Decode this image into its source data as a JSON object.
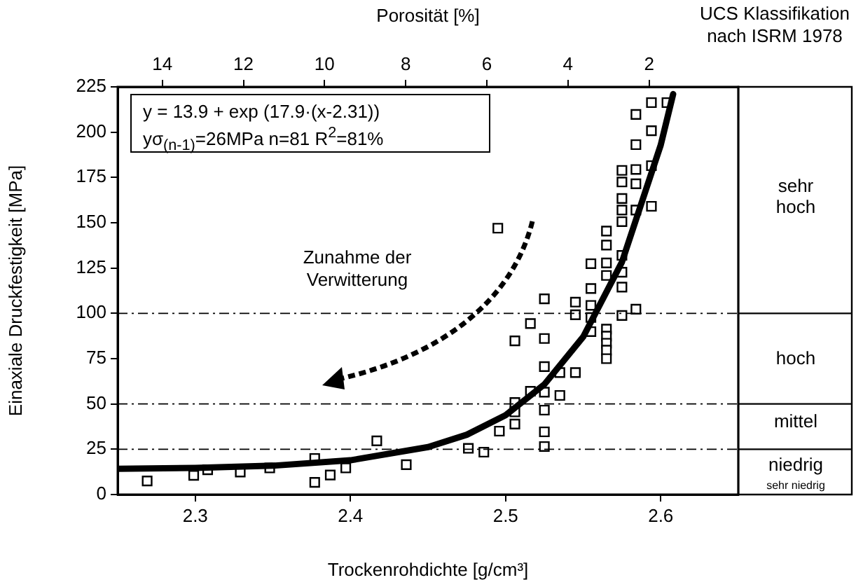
{
  "chart_data": {
    "type": "scatter",
    "xlabel": "Trockenrohdichte [g/cm³]",
    "ylabel": "Einaxiale Druckfestigkeit [MPa]",
    "x2label": "Porosität [%]",
    "xlim": [
      2.25,
      2.65
    ],
    "xticks": [
      2.3,
      2.4,
      2.5,
      2.6
    ],
    "x2lim": [
      15.1,
      -0.2
    ],
    "x2ticks": [
      14,
      12,
      10,
      8,
      6,
      4,
      2
    ],
    "ylim": [
      0,
      225
    ],
    "yticks": [
      0,
      25,
      50,
      75,
      100,
      125,
      150,
      175,
      200,
      225
    ],
    "grid": false,
    "legend": false,
    "marker": "square",
    "series": [
      {
        "type": "scatter",
        "color": "#000000",
        "x": [
          2.269,
          2.299,
          2.308,
          2.329,
          2.348,
          2.377,
          2.377,
          2.387,
          2.397,
          2.417,
          2.436,
          2.476,
          2.486,
          2.496,
          2.506,
          2.506,
          2.506,
          2.516,
          2.525,
          2.525,
          2.525,
          2.525,
          2.535,
          2.535,
          2.545,
          2.525,
          2.525,
          2.516,
          2.506,
          2.525,
          2.495,
          2.545,
          2.545,
          2.555,
          2.555,
          2.555,
          2.555,
          2.555,
          2.565,
          2.565,
          2.565,
          2.565,
          2.565,
          2.565,
          2.565,
          2.565,
          2.565,
          2.575,
          2.575,
          2.575,
          2.575,
          2.575,
          2.575,
          2.575,
          2.575,
          2.575,
          2.584,
          2.584,
          2.584,
          2.584,
          2.584,
          2.584,
          2.594,
          2.594,
          2.594,
          2.594,
          2.604
        ],
        "values": [
          7.5,
          10.6,
          13.7,
          12.4,
          14.7,
          19.9,
          6.7,
          10.8,
          14.7,
          29.6,
          16.5,
          25.5,
          23.4,
          35,
          38.9,
          45.6,
          50.8,
          57,
          56.5,
          46.6,
          34.6,
          26.5,
          54.7,
          67.3,
          67.3,
          70.6,
          86.1,
          94.4,
          84.8,
          108,
          147,
          106.2,
          99.2,
          127.4,
          113.7,
          104.4,
          97.7,
          89.9,
          145.4,
          137.7,
          127.8,
          120.9,
          91.3,
          87.4,
          83.5,
          79.7,
          75,
          178.9,
          172.5,
          163.4,
          157,
          150.6,
          132,
          122.7,
          114.5,
          98.8,
          209.8,
          193.1,
          179.4,
          171.5,
          157,
          102.3,
          216.3,
          200.8,
          181.5,
          159.1,
          216.3
        ]
      },
      {
        "type": "line",
        "color": "#000000",
        "marker": "none",
        "line_style": "solid",
        "x": [
          2.25,
          2.3,
          2.35,
          2.4,
          2.45,
          2.475,
          2.5,
          2.525,
          2.55,
          2.575,
          2.6,
          2.608
        ],
        "values": [
          14.2,
          14.7,
          15.9,
          18.9,
          26.2,
          33,
          43.8,
          60.8,
          87,
          128.3,
          192.9,
          221
        ]
      }
    ],
    "ref_lines": [
      {
        "axis": "y",
        "value": 25,
        "line_style": "dashed"
      },
      {
        "axis": "y",
        "value": 50,
        "line_style": "dashed"
      },
      {
        "axis": "y",
        "value": 100,
        "line_style": "dashed"
      }
    ],
    "annotations": [
      "UCS Klassifikation nach ISRM 1978",
      "y = 13.9 + exp (17.9·(x-2.31))",
      "yσ$_{(n-1)}$=26MPa  n=81  R$^{2}$=81%",
      "Zunahme der Verwitterung",
      "sehr niedrig",
      "sehr hoch",
      "hoch",
      "mittel",
      "niedrig"
    ]
  }
}
